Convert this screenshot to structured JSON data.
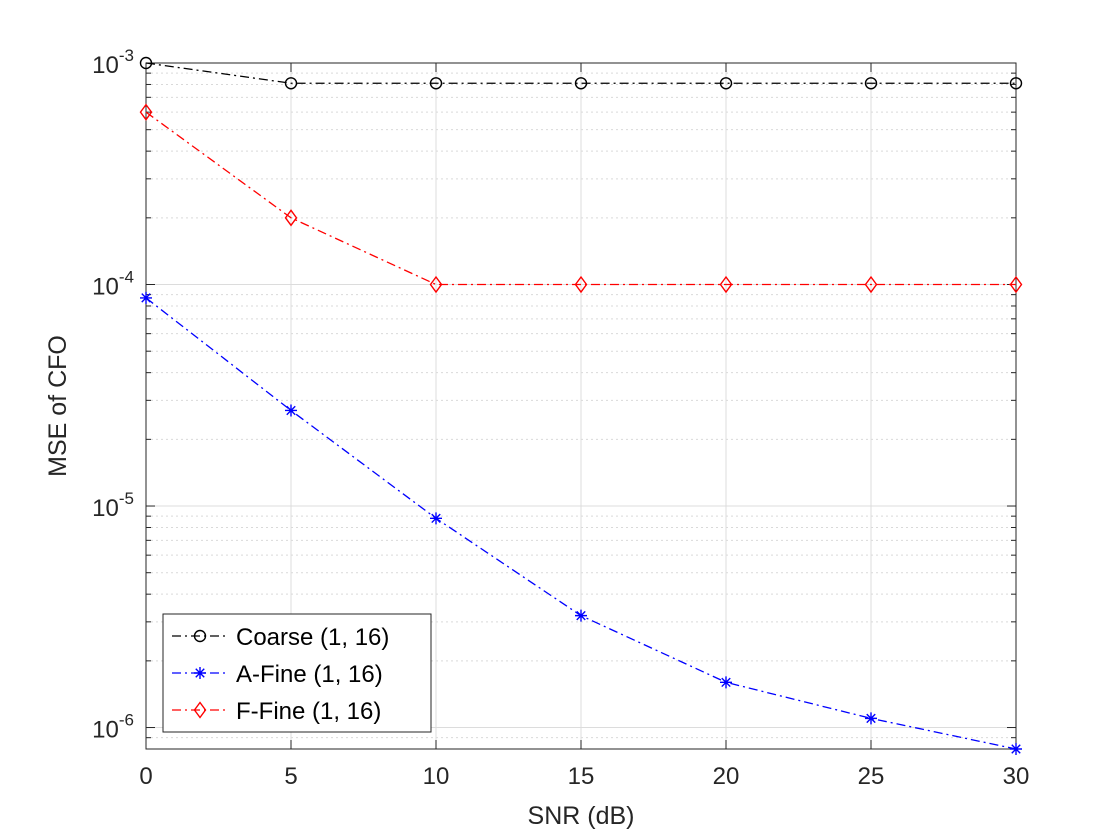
{
  "chart_data": {
    "type": "line",
    "xlabel": "SNR (dB)",
    "ylabel": "MSE of CFO",
    "x": [
      0,
      5,
      10,
      15,
      20,
      25,
      30
    ],
    "xlim": [
      0,
      30
    ],
    "ylim": [
      8e-07,
      0.001
    ],
    "yscale": "log",
    "x_ticks": [
      0,
      5,
      10,
      15,
      20,
      25,
      30
    ],
    "y_ticks": [
      {
        "value": 1e-06,
        "base": "10",
        "exp": "-6"
      },
      {
        "value": 1e-05,
        "base": "10",
        "exp": "-5"
      },
      {
        "value": 0.0001,
        "base": "10",
        "exp": "-4"
      },
      {
        "value": 0.001,
        "base": "10",
        "exp": "-3"
      }
    ],
    "grid": true,
    "minor_grid": true,
    "legend_position": "bottom-left",
    "series": [
      {
        "name": "Coarse (1, 16)",
        "color": "#000000",
        "marker": "circle",
        "linestyle": "dash-dot",
        "values": [
          0.001,
          0.00081,
          0.00081,
          0.00081,
          0.00081,
          0.00081,
          0.00081
        ]
      },
      {
        "name": "A-Fine (1, 16)",
        "color": "#0000ff",
        "marker": "asterisk",
        "linestyle": "dash-dot",
        "values": [
          8.7e-05,
          2.7e-05,
          8.8e-06,
          3.2e-06,
          1.6e-06,
          1.1e-06,
          8e-07
        ]
      },
      {
        "name": "F-Fine (1, 16)",
        "color": "#ff0000",
        "marker": "diamond",
        "linestyle": "dash-dot",
        "values": [
          0.0006,
          0.0002,
          0.0001,
          0.0001,
          0.0001,
          0.0001,
          0.0001
        ]
      }
    ]
  }
}
